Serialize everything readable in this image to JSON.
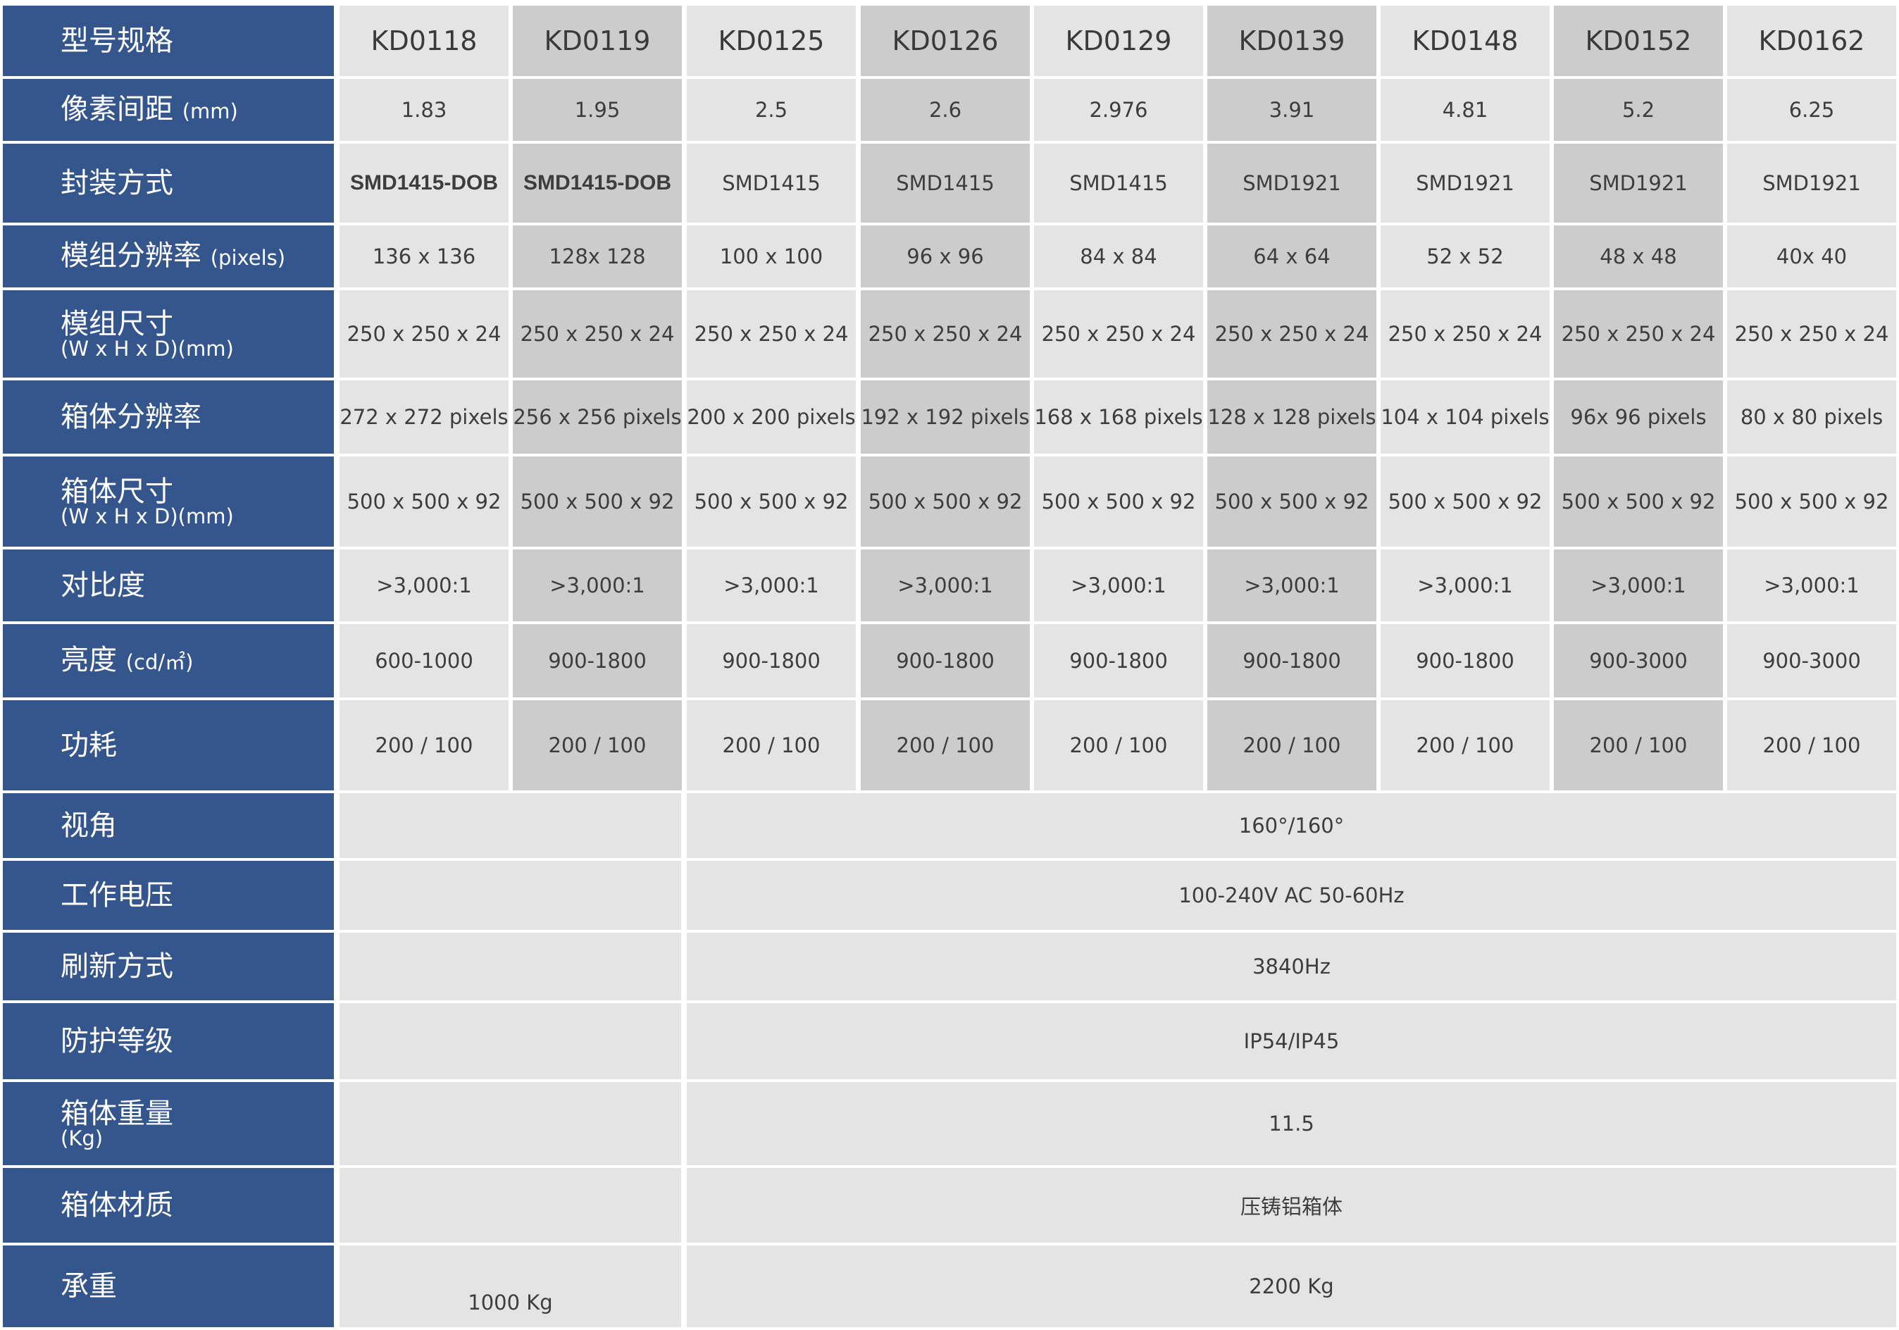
{
  "models": [
    "KD0118",
    "KD0119",
    "KD0125",
    "KD0126",
    "KD0129",
    "KD0139",
    "KD0148",
    "KD0152",
    "KD0162"
  ],
  "rows": [
    {
      "label": "像素间距",
      "unit": "(mm)",
      "sub": "",
      "values": [
        "1.83",
        "1.95",
        "2.5",
        "2.6",
        "2.976",
        "3.91",
        "4.81",
        "5.2",
        "6.25"
      ]
    },
    {
      "label": "封装方式",
      "unit": "",
      "sub": "",
      "values": [
        "SMD1415-DOB",
        "SMD1415-DOB",
        "SMD1415",
        "SMD1415",
        "SMD1415",
        "SMD1921",
        "SMD1921",
        "SMD1921",
        "SMD1921"
      ]
    },
    {
      "label": "模组分辨率",
      "unit": "(pixels)",
      "sub": "",
      "values": [
        "136 x 136",
        "128x 128",
        "100 x 100",
        "96 x 96",
        "84 x 84",
        "64 x 64",
        "52 x 52",
        "48 x 48",
        "40x 40"
      ]
    },
    {
      "label": "模组尺寸",
      "unit": "",
      "sub": "(W x H x D)(mm)",
      "values": [
        "250 x 250 x 24",
        "250 x 250 x 24",
        "250 x 250 x 24",
        "250 x 250 x 24",
        "250 x 250 x 24",
        "250 x 250 x 24",
        "250 x 250 x 24",
        "250 x 250 x 24",
        "250 x 250 x 24"
      ]
    },
    {
      "label": "箱体分辨率",
      "unit": "",
      "sub": "",
      "values": [
        "272 x 272 pixels",
        "256 x 256 pixels",
        "200 x 200 pixels",
        "192 x 192 pixels",
        "168 x 168 pixels",
        "128 x 128 pixels",
        "104 x 104 pixels",
        "96x 96 pixels",
        "80 x 80 pixels"
      ]
    },
    {
      "label": "箱体尺寸",
      "unit": "",
      "sub": "(W x H x D)(mm)",
      "values": [
        "500 x 500 x 92",
        "500 x 500 x 92",
        "500 x 500 x 92",
        "500 x 500 x 92",
        "500 x 500 x 92",
        "500 x 500 x 92",
        "500 x 500 x 92",
        "500 x 500 x 92",
        "500 x 500 x 92"
      ]
    },
    {
      "label": "对比度",
      "unit": "",
      "sub": "",
      "values": [
        ">3,000:1",
        ">3,000:1",
        ">3,000:1",
        ">3,000:1",
        ">3,000:1",
        ">3,000:1",
        ">3,000:1",
        ">3,000:1",
        ">3,000:1"
      ]
    },
    {
      "label": "亮度",
      "unit": "(cd/㎡)",
      "sub": "",
      "values": [
        "600-1000",
        "900-1800",
        "900-1800",
        "900-1800",
        "900-1800",
        "900-1800",
        "900-1800",
        "900-3000",
        "900-3000"
      ]
    },
    {
      "label": "功耗",
      "unit": "",
      "sub": "",
      "values": [
        "200 / 100",
        "200 / 100",
        "200 / 100",
        "200 / 100",
        "200 / 100",
        "200 / 100",
        "200 / 100",
        "200 / 100",
        "200 / 100"
      ]
    }
  ],
  "header_label": "型号规格",
  "shared_rows": [
    {
      "label": "视角",
      "sub": "",
      "left": "",
      "value": "160°/160°"
    },
    {
      "label": "工作电压",
      "sub": "",
      "left": "",
      "value": "100-240V AC  50-60Hz"
    },
    {
      "label": "刷新方式",
      "sub": "",
      "left": "",
      "value": "3840Hz"
    },
    {
      "label": "防护等级",
      "sub": "",
      "left": "",
      "value": "IP54/IP45"
    },
    {
      "label": "箱体重量",
      "sub": "(Kg)",
      "left": "",
      "value": "11.5"
    },
    {
      "label": "箱体材质",
      "sub": "",
      "left": "",
      "value": "压铸铝箱体"
    },
    {
      "label": "承重",
      "sub": "",
      "left": "1000 Kg",
      "value": "2200 Kg"
    }
  ]
}
